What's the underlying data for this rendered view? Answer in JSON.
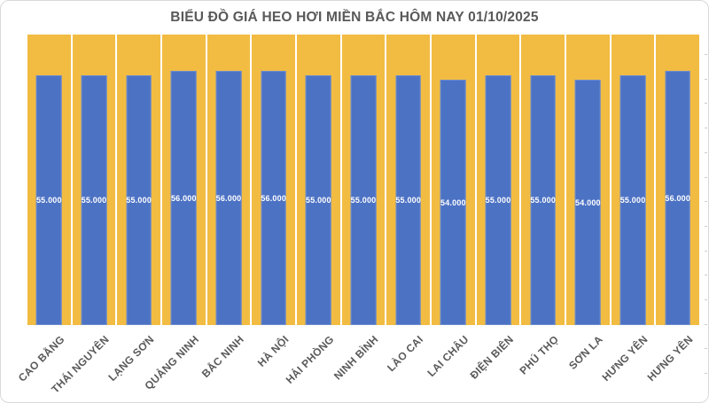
{
  "colors": {
    "gold_background_bar": "#F2BC43",
    "blue_value_bar": "#4C72C4",
    "title_text": "#595959",
    "axis_label_text": "#595959",
    "value_label_text": "#FFFFFF",
    "frame_border": "#D9D9D9"
  },
  "chart_data": {
    "type": "bar",
    "title": "BIỂU ĐỒ GIÁ HEO HƠI MIỀN BẮC HÔM NAY 01/10/2025",
    "categories": [
      "CAO BẰNG",
      "THÁI NGUYÊN",
      "LẠNG SƠN",
      "QUẢNG NINH",
      "BẮC NINH",
      "HÀ NỘI",
      "HẢI PHÒNG",
      "NINH BÌNH",
      "LÀO CAI",
      "LAI CHÂU",
      "ĐIỆN BIÊN",
      "PHÚ THỌ",
      "SƠN LA",
      "HƯNG YÊN",
      "HƯNG YÊN"
    ],
    "values": [
      55000,
      55000,
      55000,
      56000,
      56000,
      56000,
      55000,
      55000,
      55000,
      54000,
      55000,
      55000,
      54000,
      55000,
      56000
    ],
    "value_labels": [
      "55.000",
      "55.000",
      "55.000",
      "56.000",
      "56.000",
      "56.000",
      "55.000",
      "55.000",
      "55.000",
      "54.000",
      "55.000",
      "55.000",
      "54.000",
      "55.000",
      "56.000"
    ],
    "xlabel": "",
    "ylabel": "",
    "ylim": [
      0,
      64000
    ],
    "grid": false,
    "legend": false,
    "style_notes": "full-height gold background bar behind each blue value bar; value labels centered inside blue bars; x labels rotated 45 degrees"
  }
}
